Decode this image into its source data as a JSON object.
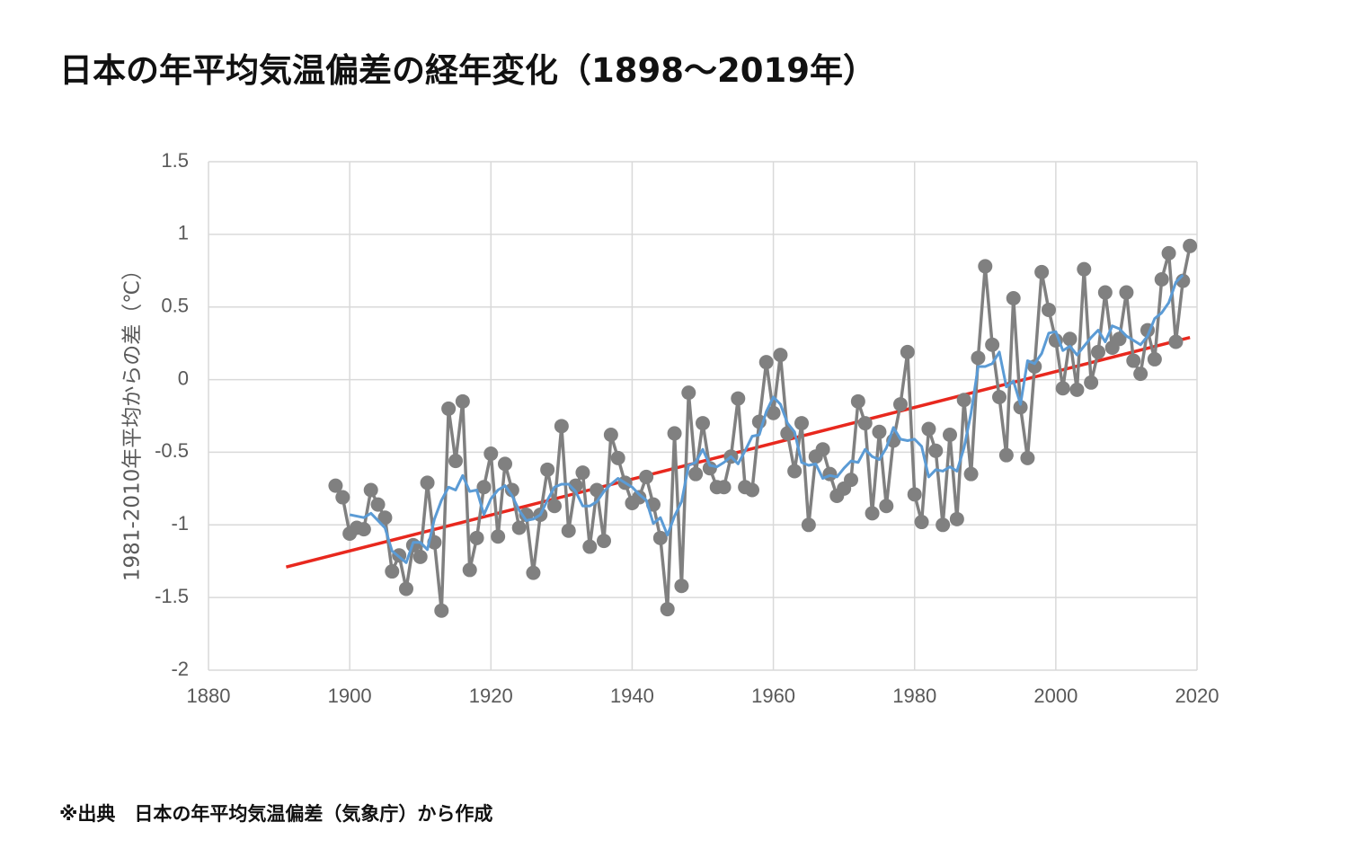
{
  "page": {
    "title": "日本の年平均気温偏差の経年変化（1898〜2019年）",
    "source_note": "※出典　日本の年平均気温偏差（気象庁）から作成"
  },
  "chart_data": {
    "type": "line",
    "title": "",
    "xlabel": "",
    "ylabel": "1981-2010年平均からの差（℃）",
    "xlim": [
      1880,
      2020
    ],
    "ylim": [
      -2,
      1.5
    ],
    "xticks": [
      1880,
      1900,
      1920,
      1940,
      1960,
      1980,
      2000,
      2020
    ],
    "yticks": [
      1.5,
      1,
      0.5,
      0,
      -0.5,
      -1,
      -1.5,
      -2
    ],
    "grid": true,
    "legend": "none",
    "colors": {
      "annual": "#808080",
      "moving_average": "#5b9bd5",
      "trend": "#e8281e"
    },
    "x": [
      1898,
      1899,
      1900,
      1901,
      1902,
      1903,
      1904,
      1905,
      1906,
      1907,
      1908,
      1909,
      1910,
      1911,
      1912,
      1913,
      1914,
      1915,
      1916,
      1917,
      1918,
      1919,
      1920,
      1921,
      1922,
      1923,
      1924,
      1925,
      1926,
      1927,
      1928,
      1929,
      1930,
      1931,
      1932,
      1933,
      1934,
      1935,
      1936,
      1937,
      1938,
      1939,
      1940,
      1941,
      1942,
      1943,
      1944,
      1945,
      1946,
      1947,
      1948,
      1949,
      1950,
      1951,
      1952,
      1953,
      1954,
      1955,
      1956,
      1957,
      1958,
      1959,
      1960,
      1961,
      1962,
      1963,
      1964,
      1965,
      1966,
      1967,
      1968,
      1969,
      1970,
      1971,
      1972,
      1973,
      1974,
      1975,
      1976,
      1977,
      1978,
      1979,
      1980,
      1981,
      1982,
      1983,
      1984,
      1985,
      1986,
      1987,
      1988,
      1989,
      1990,
      1991,
      1992,
      1993,
      1994,
      1995,
      1996,
      1997,
      1998,
      1999,
      2000,
      2001,
      2002,
      2003,
      2004,
      2005,
      2006,
      2007,
      2008,
      2009,
      2010,
      2011,
      2012,
      2013,
      2014,
      2015,
      2016,
      2017,
      2018,
      2019
    ],
    "series": [
      {
        "role": "annual",
        "values": [
          -0.73,
          -0.81,
          -1.06,
          -1.02,
          -1.03,
          -0.76,
          -0.86,
          -0.95,
          -1.32,
          -1.21,
          -1.44,
          -1.14,
          -1.22,
          -0.71,
          -1.12,
          -1.59,
          -0.2,
          -0.56,
          -0.15,
          -1.31,
          -1.09,
          -0.74,
          -0.51,
          -1.08,
          -0.58,
          -0.76,
          -1.02,
          -0.93,
          -1.33,
          -0.93,
          -0.62,
          -0.87,
          -0.32,
          -1.04,
          -0.73,
          -0.64,
          -1.15,
          -0.76,
          -1.11,
          -0.38,
          -0.54,
          -0.71,
          -0.85,
          -0.81,
          -0.67,
          -0.86,
          -1.09,
          -1.58,
          -0.37,
          -1.42,
          -0.09,
          -0.65,
          -0.3,
          -0.61,
          -0.74,
          -0.74,
          -0.53,
          -0.13,
          -0.74,
          -0.76,
          -0.29,
          0.12,
          -0.23,
          0.17,
          -0.37,
          -0.63,
          -0.3,
          -1.0,
          -0.53,
          -0.48,
          -0.65,
          -0.8,
          -0.75,
          -0.69,
          -0.15,
          -0.3,
          -0.92,
          -0.36,
          -0.87,
          -0.42,
          -0.17,
          0.19,
          -0.79,
          -0.98,
          -0.34,
          -0.49,
          -1.0,
          -0.38,
          -0.96,
          -0.14,
          -0.65,
          0.15,
          0.78,
          0.24,
          -0.12,
          -0.52,
          0.56,
          -0.19,
          -0.54,
          0.09,
          0.74,
          0.48,
          0.27,
          -0.06,
          0.28,
          -0.07,
          0.76,
          -0.02,
          0.19,
          0.6,
          0.22,
          0.28,
          0.6,
          0.13,
          0.04,
          0.34,
          0.14,
          0.69,
          0.87,
          0.26,
          0.68,
          0.92
        ]
      },
      {
        "role": "moving_average",
        "values": [
          null,
          null,
          -0.93,
          -0.94,
          -0.95,
          -0.92,
          -0.97,
          -1.02,
          -1.18,
          -1.22,
          -1.26,
          -1.12,
          -1.12,
          -1.17,
          -0.96,
          -0.83,
          -0.74,
          -0.76,
          -0.66,
          -0.77,
          -0.76,
          -0.93,
          -0.82,
          -0.76,
          -0.73,
          -0.8,
          -0.9,
          -0.97,
          -0.96,
          -0.93,
          -0.83,
          -0.74,
          -0.72,
          -0.72,
          -0.77,
          -0.87,
          -0.87,
          -0.84,
          -0.77,
          -0.72,
          -0.68,
          -0.71,
          -0.74,
          -0.79,
          -0.83,
          -0.99,
          -0.95,
          -1.07,
          -0.94,
          -0.84,
          -0.59,
          -0.57,
          -0.48,
          -0.59,
          -0.6,
          -0.57,
          -0.53,
          -0.58,
          -0.49,
          -0.39,
          -0.38,
          -0.22,
          -0.12,
          -0.17,
          -0.3,
          -0.36,
          -0.57,
          -0.59,
          -0.58,
          -0.68,
          -0.66,
          -0.67,
          -0.61,
          -0.56,
          -0.57,
          -0.48,
          -0.53,
          -0.55,
          -0.47,
          -0.33,
          -0.41,
          -0.42,
          -0.41,
          -0.46,
          -0.67,
          -0.62,
          -0.63,
          -0.6,
          -0.63,
          -0.47,
          -0.23,
          0.09,
          0.09,
          0.11,
          0.19,
          -0.05,
          -0.01,
          -0.17,
          0.13,
          0.11,
          0.18,
          0.32,
          0.33,
          0.2,
          0.23,
          0.17,
          0.23,
          0.29,
          0.34,
          0.26,
          0.37,
          0.35,
          0.3,
          0.27,
          0.24,
          0.3,
          0.42,
          0.46,
          0.53,
          0.67,
          0.72,
          null
        ]
      },
      {
        "role": "trend",
        "x": [
          1891,
          2019
        ],
        "values": [
          -1.29,
          0.29
        ]
      }
    ]
  }
}
